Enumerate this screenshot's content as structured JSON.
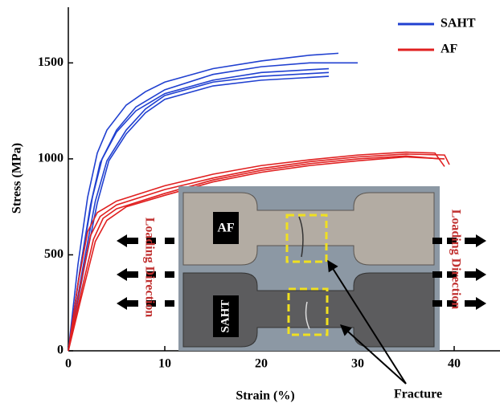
{
  "chart_data": {
    "type": "line",
    "xlabel": "Strain (%)",
    "ylabel": "Stress (MPa)",
    "xlim": [
      0,
      45
    ],
    "ylim": [
      0,
      1790
    ],
    "xticks": [
      0,
      10,
      20,
      30,
      40
    ],
    "yticks": [
      0,
      500,
      1000,
      1500
    ],
    "legend": "top-right",
    "series": [
      {
        "name": "SAHT",
        "color": "#2040d0",
        "curves": [
          {
            "x": [
              0,
              1,
              2,
              3,
              4,
              6,
              8,
              10,
              15,
              20,
              25,
              28
            ],
            "values": [
              0,
              450,
              800,
              1030,
              1150,
              1280,
              1350,
              1400,
              1470,
              1510,
              1540,
              1550
            ]
          },
          {
            "x": [
              0,
              1.3,
              2.5,
              3.5,
              5,
              7,
              10,
              15,
              20,
              25,
              30
            ],
            "values": [
              0,
              450,
              800,
              1000,
              1150,
              1270,
              1360,
              1440,
              1480,
              1500,
              1500
            ]
          },
          {
            "x": [
              0,
              1.2,
              2.3,
              3.3,
              5,
              7,
              10,
              15,
              20,
              27
            ],
            "values": [
              0,
              420,
              760,
              980,
              1140,
              1250,
              1340,
              1410,
              1450,
              1470
            ]
          },
          {
            "x": [
              0,
              1.5,
              2.8,
              4,
              6,
              8,
              10,
              15,
              20,
              27
            ],
            "values": [
              0,
              430,
              780,
              990,
              1150,
              1260,
              1330,
              1400,
              1430,
              1450
            ]
          },
          {
            "x": [
              0,
              1.6,
              3,
              4.2,
              6,
              8,
              10,
              15,
              20,
              27
            ],
            "values": [
              0,
              420,
              770,
              990,
              1130,
              1240,
              1310,
              1380,
              1410,
              1430
            ]
          }
        ]
      },
      {
        "name": "AF",
        "color": "#e02020",
        "curves": [
          {
            "x": [
              0,
              1,
              2,
              3,
              5,
              10,
              15,
              20,
              25,
              30,
              35,
              38,
              39
            ],
            "values": [
              0,
              350,
              620,
              720,
              780,
              860,
              920,
              965,
              995,
              1020,
              1035,
              1030,
              960
            ]
          },
          {
            "x": [
              0,
              1.2,
              2.3,
              3.3,
              5,
              10,
              15,
              20,
              25,
              30,
              35,
              39,
              39.5
            ],
            "values": [
              0,
              330,
              600,
              700,
              760,
              840,
              900,
              950,
              985,
              1010,
              1025,
              1020,
              970
            ]
          },
          {
            "x": [
              0,
              1.4,
              2.6,
              3.6,
              5,
              10,
              15,
              20,
              25,
              30,
              35,
              38.5
            ],
            "values": [
              0,
              320,
              580,
              690,
              740,
              820,
              890,
              940,
              975,
              1000,
              1015,
              1000
            ]
          },
          {
            "x": [
              0,
              1.5,
              2.8,
              4,
              6,
              10,
              15,
              20,
              25,
              30,
              35,
              39
            ],
            "values": [
              0,
              310,
              570,
              680,
              750,
              810,
              880,
              930,
              965,
              990,
              1010,
              1000
            ]
          }
        ]
      }
    ],
    "annotations": [
      "Loading Direction",
      "Loading Direction",
      "AF",
      "SAHT",
      "Fracture"
    ]
  }
}
